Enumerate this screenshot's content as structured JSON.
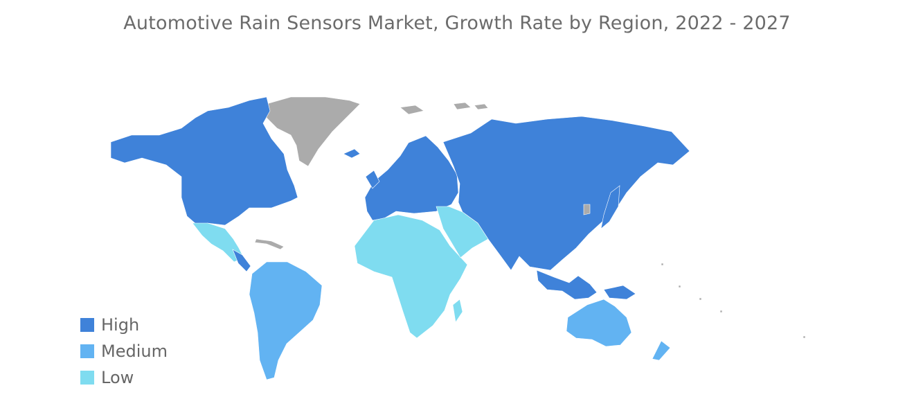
{
  "title": "Automotive Rain Sensors Market, Growth Rate by Region, 2022 - 2027",
  "colors": {
    "high": "#3f82d9",
    "medium": "#62b3f2",
    "low": "#7fdcf0",
    "no_data": "#ababab"
  },
  "legend": [
    {
      "label": "High",
      "color": "#3f82d9"
    },
    {
      "label": "Medium",
      "color": "#62b3f2"
    },
    {
      "label": "Low",
      "color": "#7fdcf0"
    }
  ],
  "regions": {
    "north_america": "High",
    "europe": "High",
    "asia_pacific": "High",
    "south_america": "Medium",
    "australia": "Medium",
    "middle_east_africa": "Low",
    "mexico_central_america": "Low",
    "greenland": "No data"
  }
}
